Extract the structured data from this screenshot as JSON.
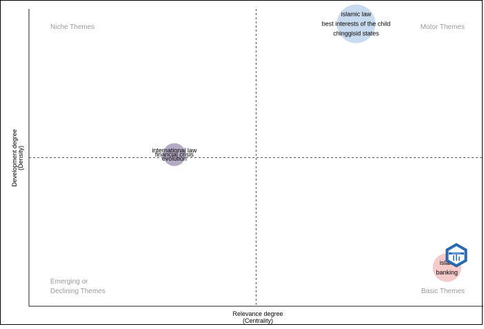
{
  "chart_data": {
    "type": "scatter",
    "xlabel": [
      "Relevance degree",
      "(Centrality)"
    ],
    "ylabel": [
      "Development degree",
      "(Density)"
    ],
    "quadrants": {
      "top_left": [
        "Niche Themes"
      ],
      "top_right": [
        "Motor Themes"
      ],
      "bottom_left": [
        "Emerging or",
        "Declining Themes"
      ],
      "bottom_right": [
        "Basic Themes"
      ]
    },
    "logo_text": "bibliometrix",
    "clusters": [
      {
        "labels": [
          "islamic law",
          "best interests of the child",
          "chinggisid states"
        ],
        "x": 0.72,
        "y": 0.95,
        "size": 1.0,
        "color": "#b7cfe8"
      },
      {
        "labels": [
          "international law",
          "financial crisis",
          "evolution"
        ],
        "x": 0.32,
        "y": 0.51,
        "size": 0.35,
        "color": "#9a8fb0"
      },
      {
        "labels": [
          "islam",
          "banking"
        ],
        "x": 0.92,
        "y": 0.13,
        "size": 0.55,
        "color": "#f2b8b8"
      }
    ],
    "ref_lines": {
      "x": 0.5,
      "y": 0.5
    },
    "grid": false,
    "legend": "none"
  }
}
